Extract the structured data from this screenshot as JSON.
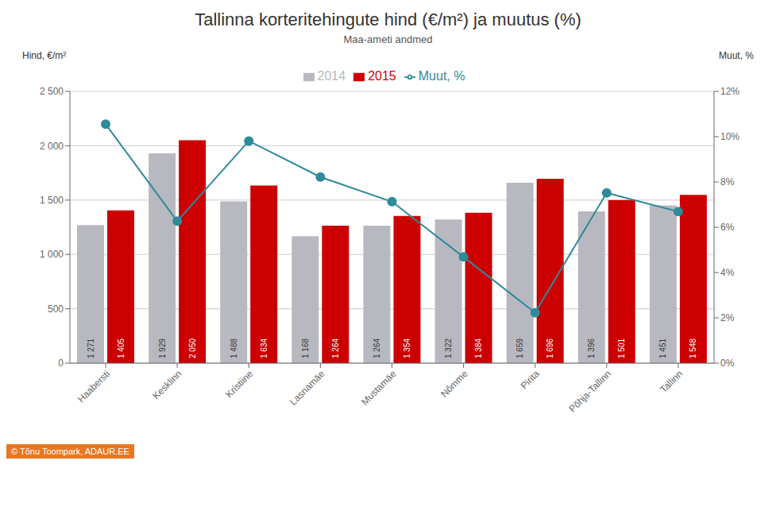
{
  "chart_data": {
    "type": "bar",
    "title": "Tallinna korteritehingute hind (€/m²) ja muutus (%)",
    "subtitle": "Maa-ameti andmed",
    "ylabel": "Hind, €/m²",
    "y2label": "Muut, %",
    "categories": [
      "Haabersti",
      "Kesklinn",
      "Kristiine",
      "Lasnamäe",
      "Mustamäe",
      "Nõmme",
      "Pirita",
      "Põhja-Tallinn",
      "Tallinn"
    ],
    "series": [
      {
        "name": "2014",
        "type": "bar",
        "color": "#b8b8c0",
        "values": [
          1271,
          1929,
          1488,
          1168,
          1264,
          1322,
          1659,
          1396,
          1451
        ],
        "data_labels": true,
        "value_labels": [
          "1 271",
          "1 929",
          "1 488",
          "1 168",
          "1 264",
          "1 322",
          "1 659",
          "1 396",
          "1 451"
        ]
      },
      {
        "name": "2015",
        "type": "bar",
        "color": "#cc0000",
        "values": [
          1405,
          2050,
          1634,
          1264,
          1354,
          1384,
          1696,
          1501,
          1548
        ],
        "data_labels": true,
        "value_labels": [
          "1 405",
          "2 050",
          "1 634",
          "1 264",
          "1 354",
          "1 384",
          "1 696",
          "1 501",
          "1 548"
        ]
      },
      {
        "name": "Muut, %",
        "type": "line",
        "axis": "y2",
        "color": "#2e8b9a",
        "marker": "circle",
        "values": [
          10.55,
          6.27,
          9.81,
          8.22,
          7.13,
          4.69,
          2.23,
          7.52,
          6.69
        ]
      }
    ],
    "ylim": [
      0,
      2500
    ],
    "yticks": [
      0,
      500,
      {
        "value": 1000,
        "label": "1 000"
      },
      {
        "value": 1500,
        "label": "1 500"
      },
      {
        "value": 2000,
        "label": "2 000"
      },
      {
        "value": 2500,
        "label": "2 500"
      }
    ],
    "y2lim": [
      0,
      12
    ],
    "y2ticks": [
      {
        "value": 0,
        "label": "0%"
      },
      {
        "value": 2,
        "label": "2%"
      },
      {
        "value": 4,
        "label": "4%"
      },
      {
        "value": 6,
        "label": "6%"
      },
      {
        "value": 8,
        "label": "8%"
      },
      {
        "value": 10,
        "label": "10%"
      },
      {
        "value": 12,
        "label": "12%"
      }
    ],
    "grid": true,
    "legend": "top",
    "annotations": [
      "© Tõnu Toompark, ADAUR.EE"
    ]
  }
}
